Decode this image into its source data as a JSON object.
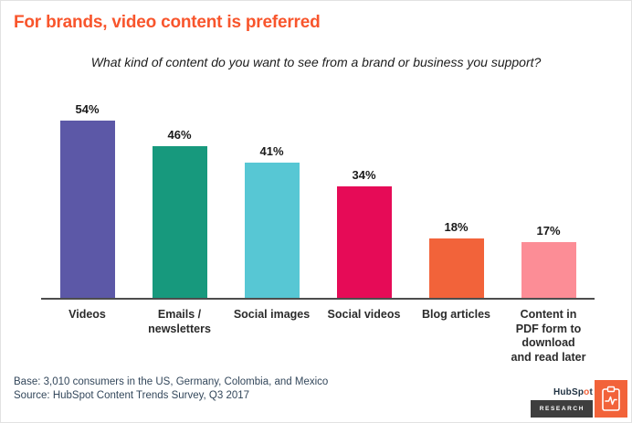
{
  "page": {
    "title": "For brands, video content is preferred",
    "subtitle": "What kind of content do you want to see from a brand or business you support?"
  },
  "chart_data": {
    "type": "bar",
    "title": "For brands, video content is preferred",
    "subtitle": "What kind of content do you want to see from a brand or business you support?",
    "categories": [
      "Videos",
      "Emails /\nnewsletters",
      "Social images",
      "Social videos",
      "Blog articles",
      "Content in\nPDF form to\ndownload\nand read later"
    ],
    "values": [
      54,
      46,
      41,
      34,
      18,
      17
    ],
    "value_labels": [
      "54%",
      "46%",
      "41%",
      "34%",
      "18%",
      "17%"
    ],
    "bar_colors": [
      "#5c58a7",
      "#17997d",
      "#57c7d4",
      "#e60b57",
      "#f2633a",
      "#fc8d96"
    ],
    "xlabel": "",
    "ylabel": "",
    "ylim": [
      0,
      60
    ],
    "grid": false,
    "legend": null,
    "data_labels": true
  },
  "footer": {
    "base": "Base: 3,010 consumers in the US, Germany, Colombia, and Mexico",
    "source": "Source: HubSpot Content Trends Survey, Q3 2017"
  },
  "logo": {
    "brand_prefix": "HubSp",
    "brand_sprocket": "o",
    "brand_suffix": "t",
    "badge": "RESEARCH",
    "icon": "report-document-icon",
    "accent_color": "#f2633a",
    "badge_color": "#3e3e3e"
  },
  "colors": {
    "title": "#f8552c",
    "axis": "#4d4d4d",
    "text": "#1c1c1c",
    "footer_text": "#33475b",
    "background": "#ffffff"
  }
}
